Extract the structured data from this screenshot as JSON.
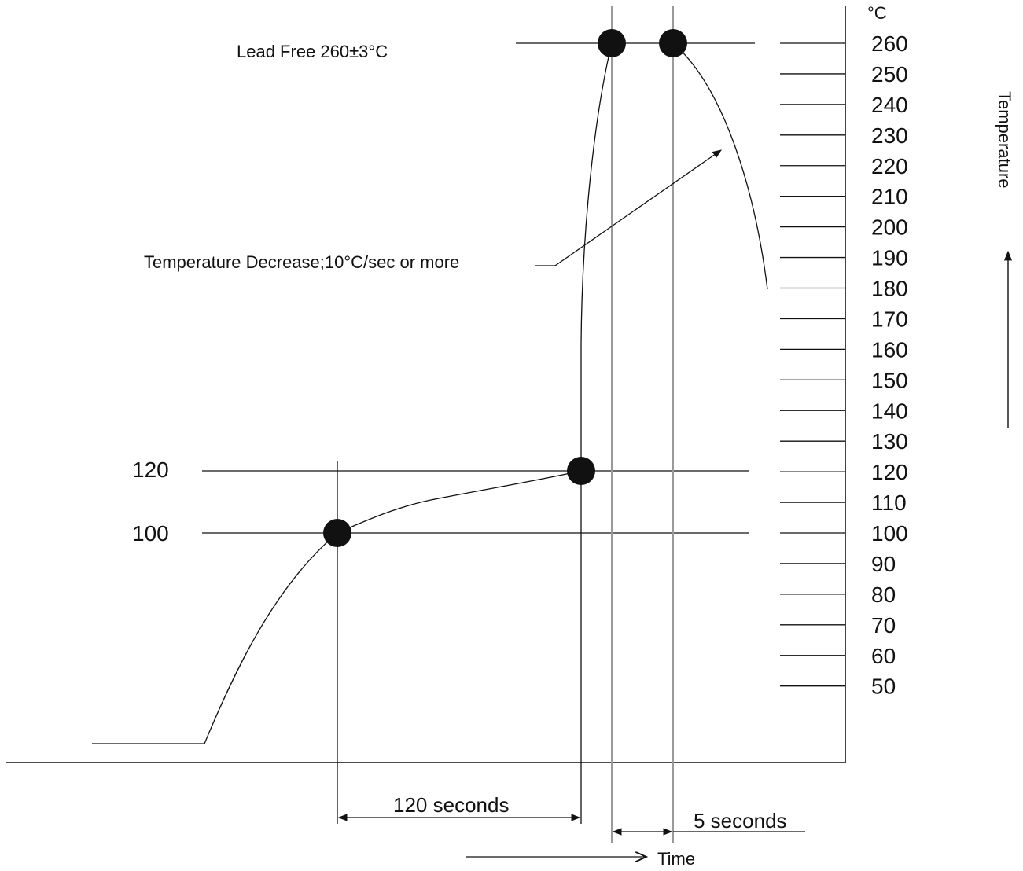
{
  "chart_data": {
    "type": "line",
    "y_unit": "°C",
    "y_axis_title": "Temperature",
    "x_axis_title": "Time",
    "y_ticks": [
      260,
      250,
      240,
      230,
      220,
      210,
      200,
      190,
      180,
      170,
      160,
      150,
      140,
      130,
      120,
      110,
      100,
      90,
      80,
      70,
      60,
      50
    ],
    "left_labels": [
      120,
      100
    ],
    "peak_label": "Lead Free 260±3°C",
    "decrease_label": "Temperature Decrease;10°C/sec or more",
    "preheat_duration_label": "120 seconds",
    "peak_duration_label": "5 seconds",
    "preheat_seconds": 120,
    "peak_seconds": 5,
    "preheat_start_c": 100,
    "preheat_end_c": 120,
    "peak_c": 260,
    "peak_tolerance_c": 3,
    "cooling_rate_c_per_sec": 10,
    "grid": false
  }
}
